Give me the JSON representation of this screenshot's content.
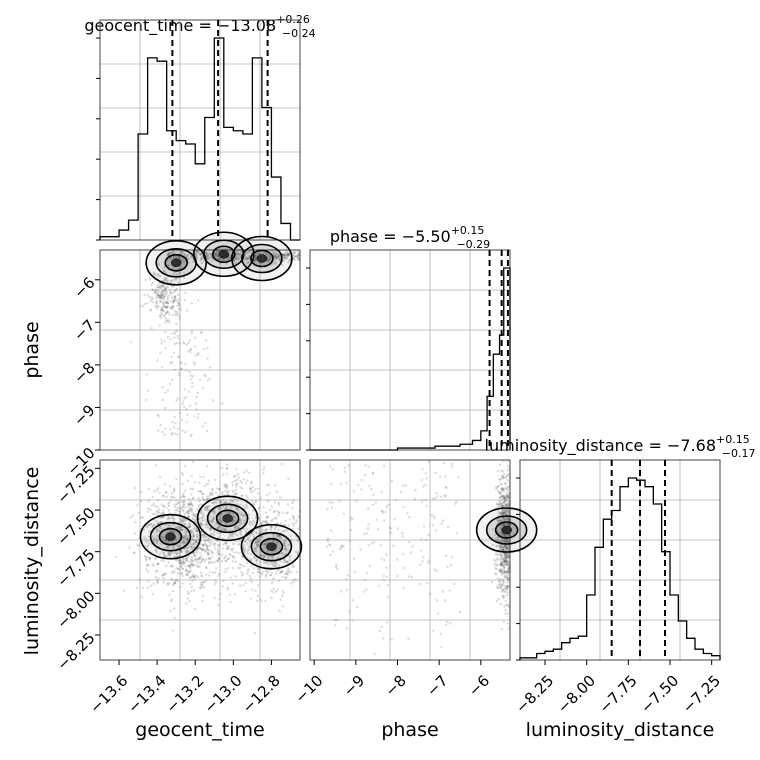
{
  "chart_data": [
    {
      "type": "histogram",
      "panel": "geocent_time-1d",
      "title_param": "geocent_time",
      "title_median": "−13.08",
      "title_plus": "+0.26",
      "title_minus": "−0.24",
      "xlim": [
        -13.7,
        -12.65
      ],
      "bins": [
        -13.7,
        -13.65,
        -13.6,
        -13.55,
        -13.5,
        -13.45,
        -13.4,
        -13.35,
        -13.3,
        -13.25,
        -13.2,
        -13.15,
        -13.1,
        -13.05,
        -13.0,
        -12.95,
        -12.9,
        -12.85,
        -12.8,
        -12.75,
        -12.7,
        -12.65
      ],
      "counts": [
        1,
        1,
        3,
        6,
        32,
        55,
        54,
        33,
        30,
        29,
        23,
        37,
        61,
        34,
        33,
        32,
        55,
        40,
        19,
        5,
        0
      ],
      "quantiles": [
        -13.32,
        -13.08,
        -12.82
      ],
      "grid": true
    },
    {
      "type": "histogram",
      "panel": "phase-1d",
      "title_param": "phase",
      "title_median": "−5.50",
      "title_plus": "+0.15",
      "title_minus": "−0.29",
      "xlim": [
        -10.1,
        -5.3
      ],
      "bins": [
        -10.1,
        -9.8,
        -9.5,
        -9.2,
        -8.9,
        -8.6,
        -8.3,
        -8.0,
        -7.7,
        -7.4,
        -7.1,
        -6.8,
        -6.5,
        -6.2,
        -6.0,
        -5.85,
        -5.7,
        -5.55,
        -5.45,
        -5.35,
        -5.3
      ],
      "counts": [
        0,
        0,
        0,
        0,
        0,
        0,
        0,
        1,
        1,
        1,
        2,
        2,
        3,
        5,
        10,
        28,
        50,
        60,
        95,
        95
      ],
      "quantiles": [
        -5.79,
        -5.5,
        -5.35
      ],
      "grid": true
    },
    {
      "type": "histogram",
      "panel": "luminosity_distance-1d",
      "title_param": "luminosity_distance",
      "title_median": "−7.68",
      "title_plus": "+0.15",
      "title_minus": "−0.17",
      "xlim": [
        -8.4,
        -7.2
      ],
      "bins": [
        -8.4,
        -8.35,
        -8.3,
        -8.25,
        -8.2,
        -8.15,
        -8.1,
        -8.05,
        -8.0,
        -7.95,
        -7.9,
        -7.85,
        -7.8,
        -7.75,
        -7.7,
        -7.65,
        -7.6,
        -7.55,
        -7.5,
        -7.45,
        -7.4,
        -7.35,
        -7.3,
        -7.25,
        -7.2
      ],
      "counts": [
        1,
        1,
        3,
        4,
        5,
        8,
        10,
        11,
        30,
        52,
        65,
        69,
        80,
        84,
        83,
        80,
        72,
        50,
        30,
        18,
        10,
        5,
        3,
        2
      ],
      "quantiles": [
        -7.85,
        -7.68,
        -7.53
      ],
      "grid": true
    },
    {
      "type": "scatter",
      "panel": "geocent_time-phase",
      "xlim": [
        -13.7,
        -12.65
      ],
      "ylim": [
        -10.0,
        -5.3
      ],
      "ylabel": "phase",
      "yticks": [
        -10,
        -9,
        -8,
        -7,
        -6
      ],
      "ytick_labels": [
        "−10",
        "−9",
        "−8",
        "−7",
        "−6"
      ],
      "modes": [
        [
          -13.05,
          -5.4
        ],
        [
          -12.85,
          -5.5
        ],
        [
          -13.3,
          -5.6
        ]
      ],
      "grid": true
    },
    {
      "type": "scatter",
      "panel": "geocent_time-luminosity_distance",
      "xlim": [
        -13.7,
        -12.65
      ],
      "ylim": [
        -8.4,
        -7.2
      ],
      "xlabel": "geocent_time",
      "ylabel": "luminosity_distance",
      "xticks": [
        -13.6,
        -13.4,
        -13.2,
        -13.0,
        -12.8
      ],
      "xtick_labels": [
        "−13.6",
        "−13.4",
        "−13.2",
        "−13.0",
        "−12.8"
      ],
      "yticks": [
        -7.25,
        -7.5,
        -7.75,
        -8.0,
        -8.25
      ],
      "ytick_labels": [
        "−7.25",
        "−7.50",
        "−7.75",
        "−8.00",
        "−8.25"
      ],
      "modes": [
        [
          -13.33,
          -7.66
        ],
        [
          -13.03,
          -7.55
        ],
        [
          -12.8,
          -7.72
        ]
      ],
      "grid": true
    },
    {
      "type": "scatter",
      "panel": "phase-luminosity_distance",
      "xlim": [
        -10.1,
        -5.3
      ],
      "ylim": [
        -8.4,
        -7.2
      ],
      "xlabel": "phase",
      "xticks": [
        -10,
        -9,
        -8,
        -7,
        -6
      ],
      "xtick_labels": [
        "−10",
        "−9",
        "−8",
        "−7",
        "−6"
      ],
      "modes": [
        [
          -5.38,
          -7.62
        ]
      ],
      "grid": true
    },
    {
      "type": "axis",
      "panel": "luminosity_distance-xaxis",
      "xlabel": "luminosity_distance",
      "xticks": [
        -8.25,
        -8.0,
        -7.75,
        -7.5,
        -7.25
      ],
      "xtick_labels": [
        "−8.25",
        "−8.00",
        "−7.75",
        "−7.50",
        "−7.25"
      ]
    }
  ],
  "colors": {
    "line": "#000000",
    "grid": "#b0b0b0",
    "scatter": "#555555"
  }
}
